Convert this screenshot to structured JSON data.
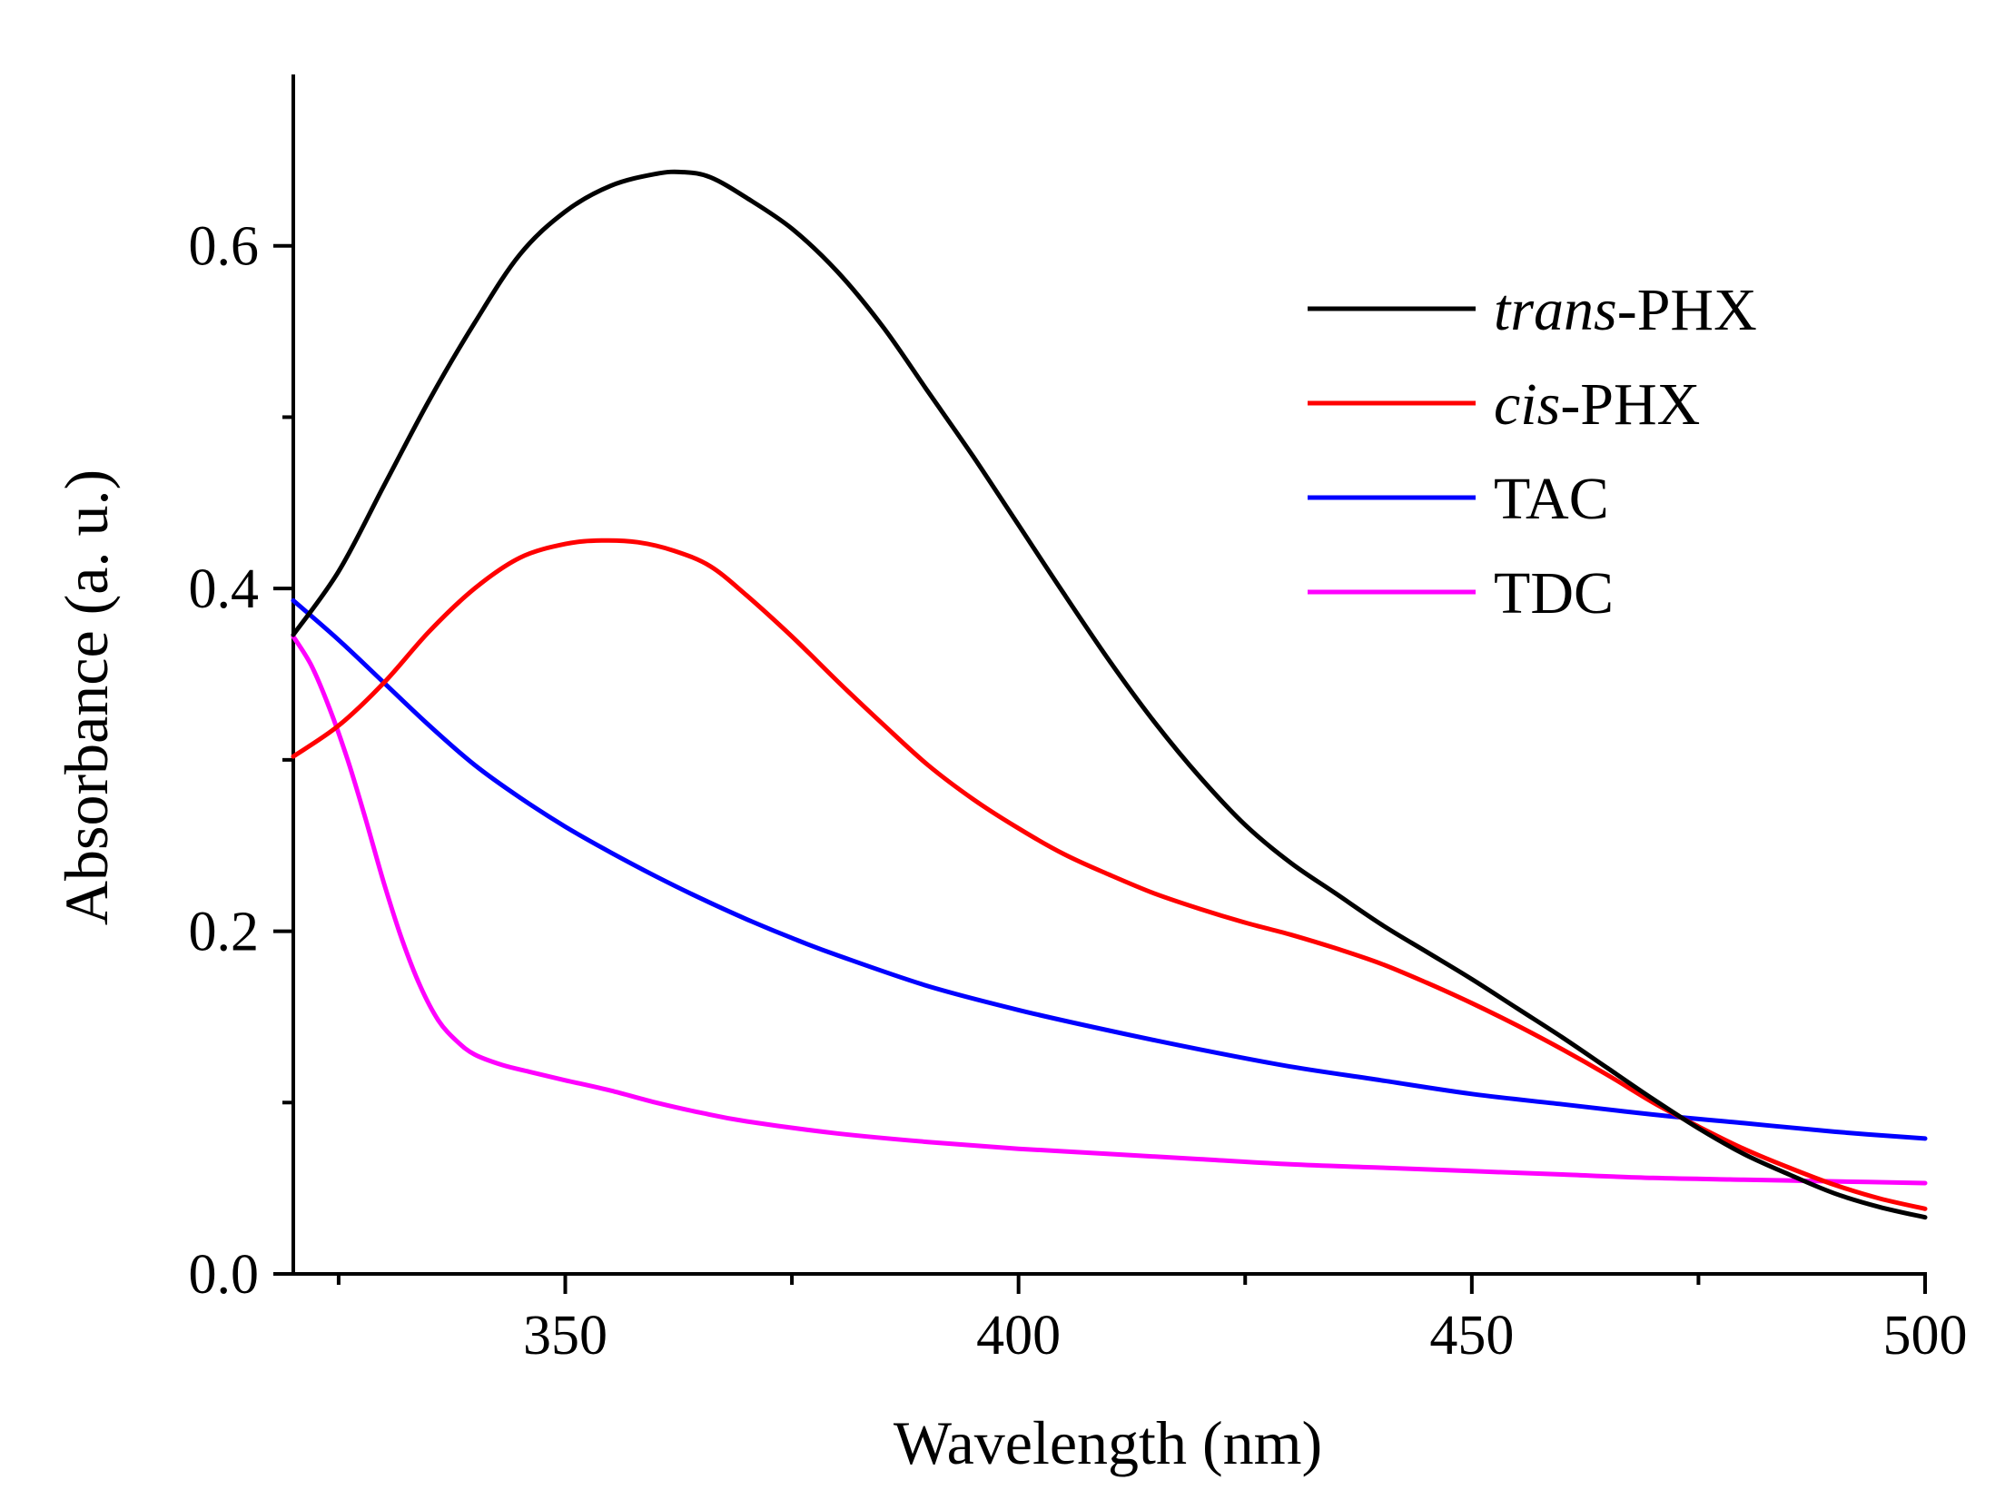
{
  "chart_data": {
    "type": "line",
    "title": "",
    "xlabel": "Wavelength (nm)",
    "ylabel": "Absorbance (a. u.)",
    "xlim": [
      320,
      500
    ],
    "ylim": [
      0,
      0.7
    ],
    "xticks": [
      350,
      400,
      450,
      500
    ],
    "xtick_labels": [
      "350",
      "400",
      "450",
      "500"
    ],
    "yticks": [
      0.0,
      0.2,
      0.4,
      0.6
    ],
    "ytick_labels": [
      "0.0",
      "0.2",
      "0.4",
      "0.6"
    ],
    "grid": false,
    "legend_position": "top-right",
    "series": [
      {
        "name": "trans-PHX",
        "name_italic": "trans",
        "name_rest": "-PHX",
        "color": "#000000",
        "x": [
          320,
          325,
          330,
          335,
          340,
          345,
          350,
          355,
          360,
          363,
          366,
          370,
          375,
          380,
          385,
          390,
          395,
          400,
          405,
          410,
          415,
          420,
          425,
          430,
          435,
          440,
          445,
          450,
          455,
          460,
          465,
          470,
          475,
          480,
          485,
          490,
          495,
          500
        ],
        "y": [
          0.373,
          0.41,
          0.46,
          0.51,
          0.555,
          0.595,
          0.62,
          0.635,
          0.642,
          0.643,
          0.64,
          0.628,
          0.61,
          0.585,
          0.553,
          0.515,
          0.477,
          0.437,
          0.397,
          0.358,
          0.322,
          0.29,
          0.262,
          0.24,
          0.222,
          0.204,
          0.188,
          0.172,
          0.155,
          0.138,
          0.12,
          0.102,
          0.085,
          0.07,
          0.058,
          0.047,
          0.039,
          0.033
        ]
      },
      {
        "name": "cis-PHX",
        "name_italic": "cis",
        "name_rest": "-PHX",
        "color": "#ff0000",
        "x": [
          320,
          325,
          330,
          335,
          340,
          345,
          350,
          354,
          358,
          362,
          366,
          370,
          375,
          380,
          385,
          390,
          395,
          400,
          405,
          410,
          415,
          420,
          425,
          430,
          435,
          440,
          445,
          450,
          455,
          460,
          465,
          470,
          475,
          480,
          485,
          490,
          495,
          500
        ],
        "y": [
          0.302,
          0.32,
          0.345,
          0.375,
          0.4,
          0.418,
          0.426,
          0.428,
          0.427,
          0.422,
          0.413,
          0.396,
          0.372,
          0.346,
          0.321,
          0.297,
          0.277,
          0.26,
          0.245,
          0.233,
          0.222,
          0.213,
          0.205,
          0.198,
          0.19,
          0.181,
          0.17,
          0.158,
          0.145,
          0.131,
          0.116,
          0.1,
          0.086,
          0.073,
          0.062,
          0.052,
          0.044,
          0.038
        ]
      },
      {
        "name": "TAC",
        "name_italic": "",
        "name_rest": "TAC",
        "color": "#0000ff",
        "x": [
          320,
          325,
          330,
          335,
          340,
          345,
          350,
          355,
          360,
          365,
          370,
          375,
          380,
          390,
          400,
          410,
          420,
          430,
          440,
          450,
          460,
          470,
          480,
          490,
          500
        ],
        "y": [
          0.393,
          0.37,
          0.345,
          0.32,
          0.297,
          0.278,
          0.261,
          0.246,
          0.232,
          0.219,
          0.207,
          0.196,
          0.186,
          0.168,
          0.154,
          0.142,
          0.131,
          0.121,
          0.113,
          0.105,
          0.099,
          0.093,
          0.088,
          0.083,
          0.079
        ]
      },
      {
        "name": "TDC",
        "name_italic": "",
        "name_rest": "TDC",
        "color": "#ff00ff",
        "x": [
          320,
          322,
          324,
          326,
          328,
          330,
          332,
          334,
          336,
          338,
          340,
          343,
          346,
          350,
          355,
          360,
          365,
          370,
          380,
          390,
          400,
          410,
          420,
          430,
          440,
          450,
          460,
          470,
          480,
          490,
          500
        ],
        "y": [
          0.372,
          0.355,
          0.33,
          0.3,
          0.265,
          0.228,
          0.195,
          0.168,
          0.148,
          0.136,
          0.128,
          0.122,
          0.118,
          0.113,
          0.107,
          0.1,
          0.094,
          0.089,
          0.082,
          0.077,
          0.073,
          0.07,
          0.067,
          0.064,
          0.062,
          0.06,
          0.058,
          0.056,
          0.055,
          0.054,
          0.053
        ]
      }
    ]
  }
}
